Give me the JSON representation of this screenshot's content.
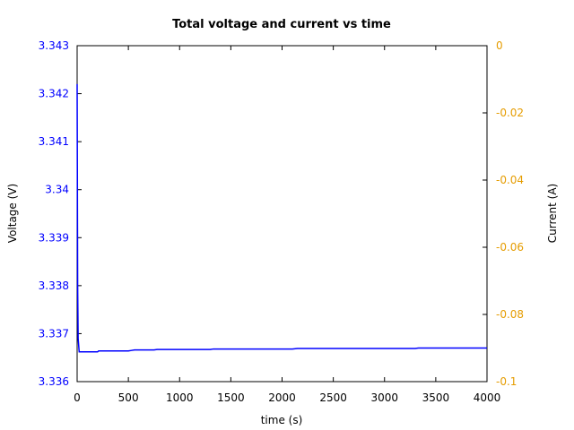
{
  "chart_data": {
    "type": "line",
    "title": "Total voltage and current vs time",
    "xlabel": "time (s)",
    "ylabel_left": "Voltage (V)",
    "ylabel_right": "Current (A)",
    "xlim": [
      0,
      4000
    ],
    "ylim_left": [
      3.336,
      3.343
    ],
    "ylim_right": [
      -0.1,
      0
    ],
    "x_ticks": [
      "0",
      "500",
      "1000",
      "1500",
      "2000",
      "2500",
      "3000",
      "3500",
      "4000"
    ],
    "x_tick_values": [
      0,
      500,
      1000,
      1500,
      2000,
      2500,
      3000,
      3500,
      4000
    ],
    "y_left_ticks": [
      "3.336",
      "3.337",
      "3.338",
      "3.339",
      "3.34",
      "3.341",
      "3.342",
      "3.343"
    ],
    "y_left_tick_values": [
      3.336,
      3.337,
      3.338,
      3.339,
      3.34,
      3.341,
      3.342,
      3.343
    ],
    "y_right_ticks": [
      "-0.1",
      "-0.08",
      "-0.06",
      "-0.04",
      "-0.02",
      "0"
    ],
    "y_right_tick_values": [
      -0.1,
      -0.08,
      -0.06,
      -0.04,
      -0.02,
      0
    ],
    "grid": false,
    "colors": {
      "voltage": "#0000ff",
      "left_ticks": "#0000ff",
      "right_ticks": "#e59c00",
      "axes": "#000000"
    },
    "series": [
      {
        "axis": "left",
        "x": [
          0,
          2,
          5,
          10,
          20,
          50,
          100,
          150,
          200,
          210,
          250,
          300,
          350,
          400,
          450,
          500,
          530,
          560,
          600,
          650,
          700,
          750,
          780,
          800,
          900,
          1000,
          1100,
          1200,
          1300,
          1330,
          1360,
          1400,
          1500,
          1600,
          1700,
          1800,
          1900,
          2000,
          2100,
          2150,
          2200,
          2300,
          2400,
          2500,
          2600,
          2700,
          2800,
          2900,
          3000,
          3100,
          3200,
          3300,
          3330,
          3360,
          3400,
          3500,
          3600,
          3700,
          3800,
          3900,
          4000
        ],
        "y": [
          3.3422,
          3.3405,
          3.338,
          3.3369,
          3.33662,
          3.33662,
          3.33662,
          3.33662,
          3.33662,
          3.33664,
          3.33664,
          3.33664,
          3.33664,
          3.33664,
          3.33664,
          3.33664,
          3.33665,
          3.33666,
          3.33666,
          3.33666,
          3.33666,
          3.33666,
          3.33667,
          3.33667,
          3.33667,
          3.33667,
          3.33667,
          3.33667,
          3.33667,
          3.33668,
          3.33668,
          3.33668,
          3.33668,
          3.33668,
          3.33668,
          3.33668,
          3.33668,
          3.33668,
          3.33668,
          3.33669,
          3.33669,
          3.33669,
          3.33669,
          3.33669,
          3.33669,
          3.33669,
          3.33669,
          3.33669,
          3.33669,
          3.33669,
          3.33669,
          3.33669,
          3.3367,
          3.3367,
          3.3367,
          3.3367,
          3.3367,
          3.3367,
          3.3367,
          3.3367,
          3.3367
        ]
      }
    ]
  }
}
